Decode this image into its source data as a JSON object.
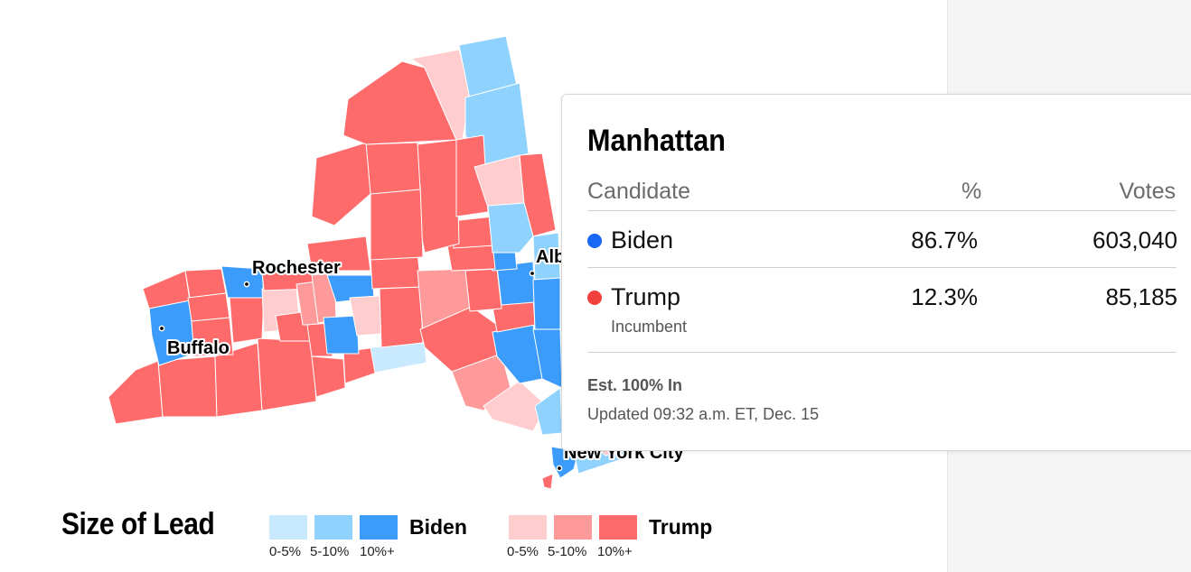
{
  "map": {
    "region": "New York",
    "cities": [
      "Rochester",
      "Buffalo",
      "Albany",
      "New York City"
    ],
    "colors": {
      "biden_0_5": "#c9e9ff",
      "biden_5_10": "#8fd2fd",
      "biden_10_plus": "#3b9cfb",
      "trump_0_5": "#ffcdcd",
      "trump_5_10": "#ff9a9a",
      "trump_10_plus": "#ff6b6b"
    }
  },
  "legend": {
    "title": "Size of Lead",
    "biden_label": "Biden",
    "trump_label": "Trump",
    "ranges": [
      "0-5%",
      "5-10%",
      "10%+"
    ]
  },
  "tooltip": {
    "county": "Manhattan",
    "headers": {
      "candidate": "Candidate",
      "percent": "%",
      "votes": "Votes"
    },
    "rows": [
      {
        "name": "Biden",
        "sub": "",
        "percent": "86.7%",
        "votes": "603,040",
        "color": "#1a66f5"
      },
      {
        "name": "Trump",
        "sub": "Incumbent",
        "percent": "12.3%",
        "votes": "85,185",
        "color": "#f2403c"
      }
    ],
    "est": "Est. 100% In",
    "updated": "Updated 09:32 a.m. ET, Dec. 15"
  }
}
